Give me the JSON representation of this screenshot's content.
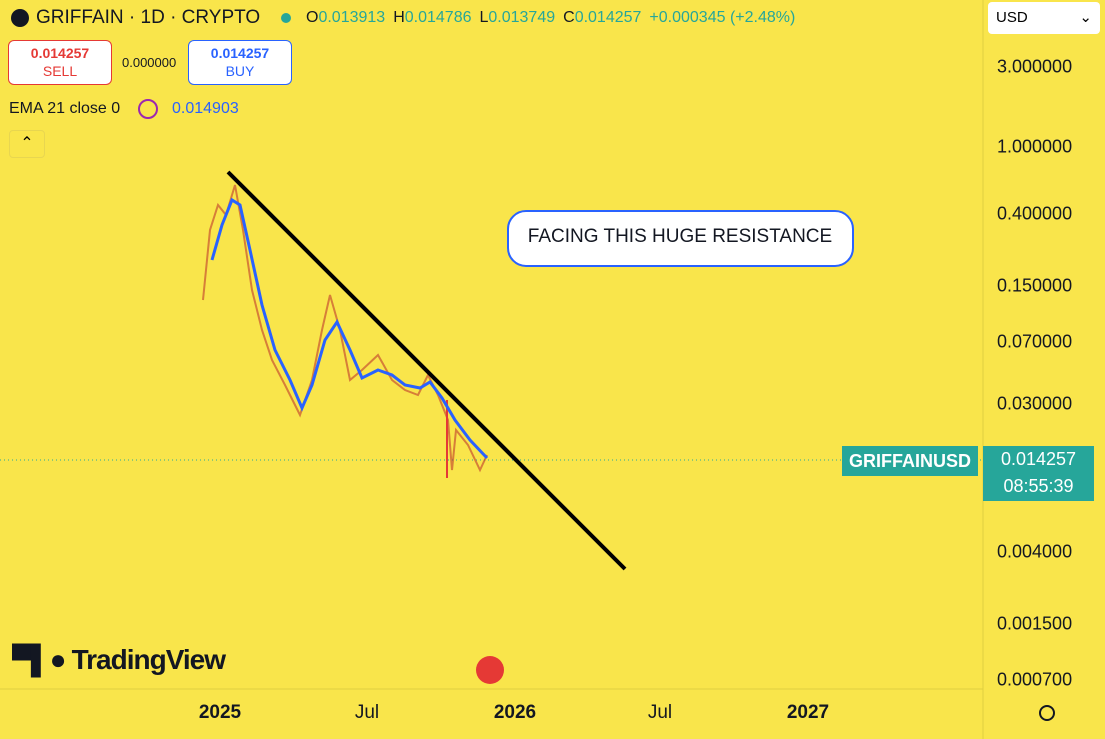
{
  "header": {
    "symbol": "GRIFFAIN · 1D · CRYPTO",
    "ohlc": [
      {
        "key": "O",
        "value": "0.013913"
      },
      {
        "key": "H",
        "value": "0.014786"
      },
      {
        "key": "L",
        "value": "0.013749"
      },
      {
        "key": "C",
        "value": "0.014257"
      }
    ],
    "change": "+0.000345 (+2.48%)"
  },
  "trade": {
    "sell_price": "0.014257",
    "sell_label": "SELL",
    "spread": "0.000000",
    "buy_price": "0.014257",
    "buy_label": "BUY"
  },
  "indicator": {
    "name": "EMA 21 close 0",
    "value": "0.014903"
  },
  "currency": "USD",
  "annotation": "FACING THIS HUGE RESISTANCE",
  "price_axis": [
    "3.000000",
    "1.000000",
    "0.400000",
    "0.150000",
    "0.070000",
    "0.030000",
    "0.004000",
    "0.001500",
    "0.000700"
  ],
  "time_axis": [
    "2025",
    "Jul",
    "2026",
    "Jul",
    "2027"
  ],
  "last_price": {
    "symbol": "GRIFFAINUSD",
    "price": "0.014257",
    "countdown": "08:55:39"
  },
  "logo": "TradingView"
}
